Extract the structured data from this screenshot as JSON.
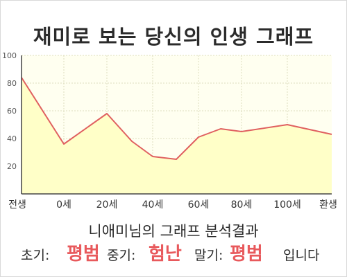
{
  "title": "재미로 보는 당신의 인생 그래프",
  "analysis": {
    "heading": "니애미님의 그래프 분석결과",
    "early_label": "초기:",
    "early_value": "평범",
    "middle_label": "중기:",
    "middle_value": "험난",
    "late_label": "말기:",
    "late_value": "평범",
    "ending": "입니다"
  },
  "chart_data": {
    "type": "area",
    "x_labels": [
      "전생",
      "0세",
      "20세",
      "40세",
      "60세",
      "80세",
      "100세",
      "환생"
    ],
    "y_ticks": [
      20,
      40,
      60,
      80,
      100
    ],
    "ylim": [
      0,
      100
    ],
    "series": [
      {
        "points": [
          {
            "x": "전생",
            "y": 84
          },
          {
            "x": "0세",
            "y": 36
          },
          {
            "x": "20세",
            "y": 58
          },
          {
            "x": "30세",
            "y": 38
          },
          {
            "x": "40세",
            "y": 27
          },
          {
            "x": "50세",
            "y": 25
          },
          {
            "x": "60세",
            "y": 41
          },
          {
            "x": "70세",
            "y": 47
          },
          {
            "x": "80세",
            "y": 45
          },
          {
            "x": "100세",
            "y": 50
          },
          {
            "x": "환생",
            "y": 43
          }
        ]
      }
    ],
    "grid": true,
    "colors": {
      "line": "#e06060",
      "fill": "#ffffc8",
      "plot_bg": "#fffff0",
      "grid": "#dcdcbe"
    }
  }
}
